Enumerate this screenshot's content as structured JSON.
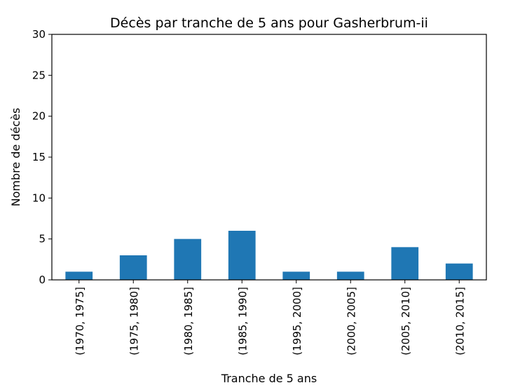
{
  "chart_data": {
    "type": "bar",
    "title": "Décès par tranche de 5 ans pour Gasherbrum-ii",
    "xlabel": "Tranche de 5 ans",
    "ylabel": "Nombre de décès",
    "categories": [
      "(1970, 1975]",
      "(1975, 1980]",
      "(1980, 1985]",
      "(1985, 1990]",
      "(1995, 2000]",
      "(2000, 2005]",
      "(2005, 2010]",
      "(2010, 2015]"
    ],
    "values": [
      1,
      3,
      5,
      6,
      1,
      1,
      4,
      2
    ],
    "ylim": [
      0,
      30
    ],
    "yticks": [
      "0",
      "5",
      "10",
      "15",
      "20",
      "25",
      "30"
    ],
    "grid": false,
    "bar_color": "#1f77b4"
  }
}
